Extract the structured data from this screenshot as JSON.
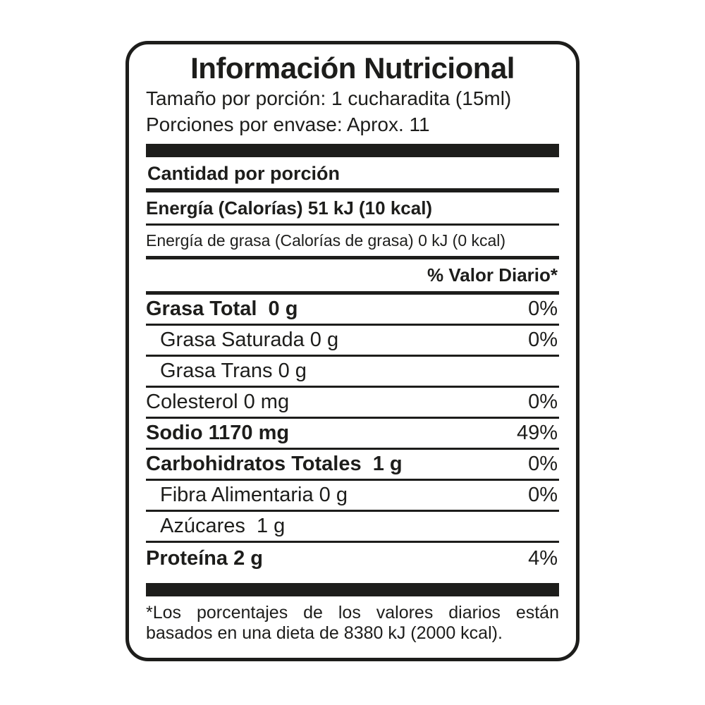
{
  "nutrition_label": {
    "title": "Información Nutricional",
    "serving_size": "Tamaño por porción: 1 cucharadita (15ml)",
    "servings_per_container": "Porciones por envase: Aprox. 11",
    "amount_per_serving_header": "Cantidad por porción",
    "energy": "Energía (Calorías) 51 kJ (10 kcal)",
    "energy_from_fat": "Energía de grasa (Calorías de grasa) 0 kJ (0 kcal)",
    "daily_value_header": "% Valor Diario*",
    "nutrients": [
      {
        "name": "Grasa Total  0 g",
        "percent": "0%"
      },
      {
        "name": "Grasa Saturada 0 g",
        "percent": "0%"
      },
      {
        "name": "Grasa Trans 0 g",
        "percent": ""
      },
      {
        "name": "Colesterol 0 mg",
        "percent": "0%"
      },
      {
        "name": "Sodio 1170 mg",
        "percent": "49%"
      },
      {
        "name": "Carbohidratos Totales  1 g",
        "percent": "0%"
      },
      {
        "name": "Fibra Alimentaria 0 g",
        "percent": "0%"
      },
      {
        "name": "Azúcares  1 g",
        "percent": ""
      },
      {
        "name": "Proteína 2 g",
        "percent": "4%"
      }
    ],
    "footnote_line1": "*Los porcentajes de los valores diarios están",
    "footnote_line2": "basados en una dieta de 8380 kJ (2000 kcal).",
    "colors": {
      "ink": "#1d1d1b",
      "paper": "#ffffff"
    }
  }
}
